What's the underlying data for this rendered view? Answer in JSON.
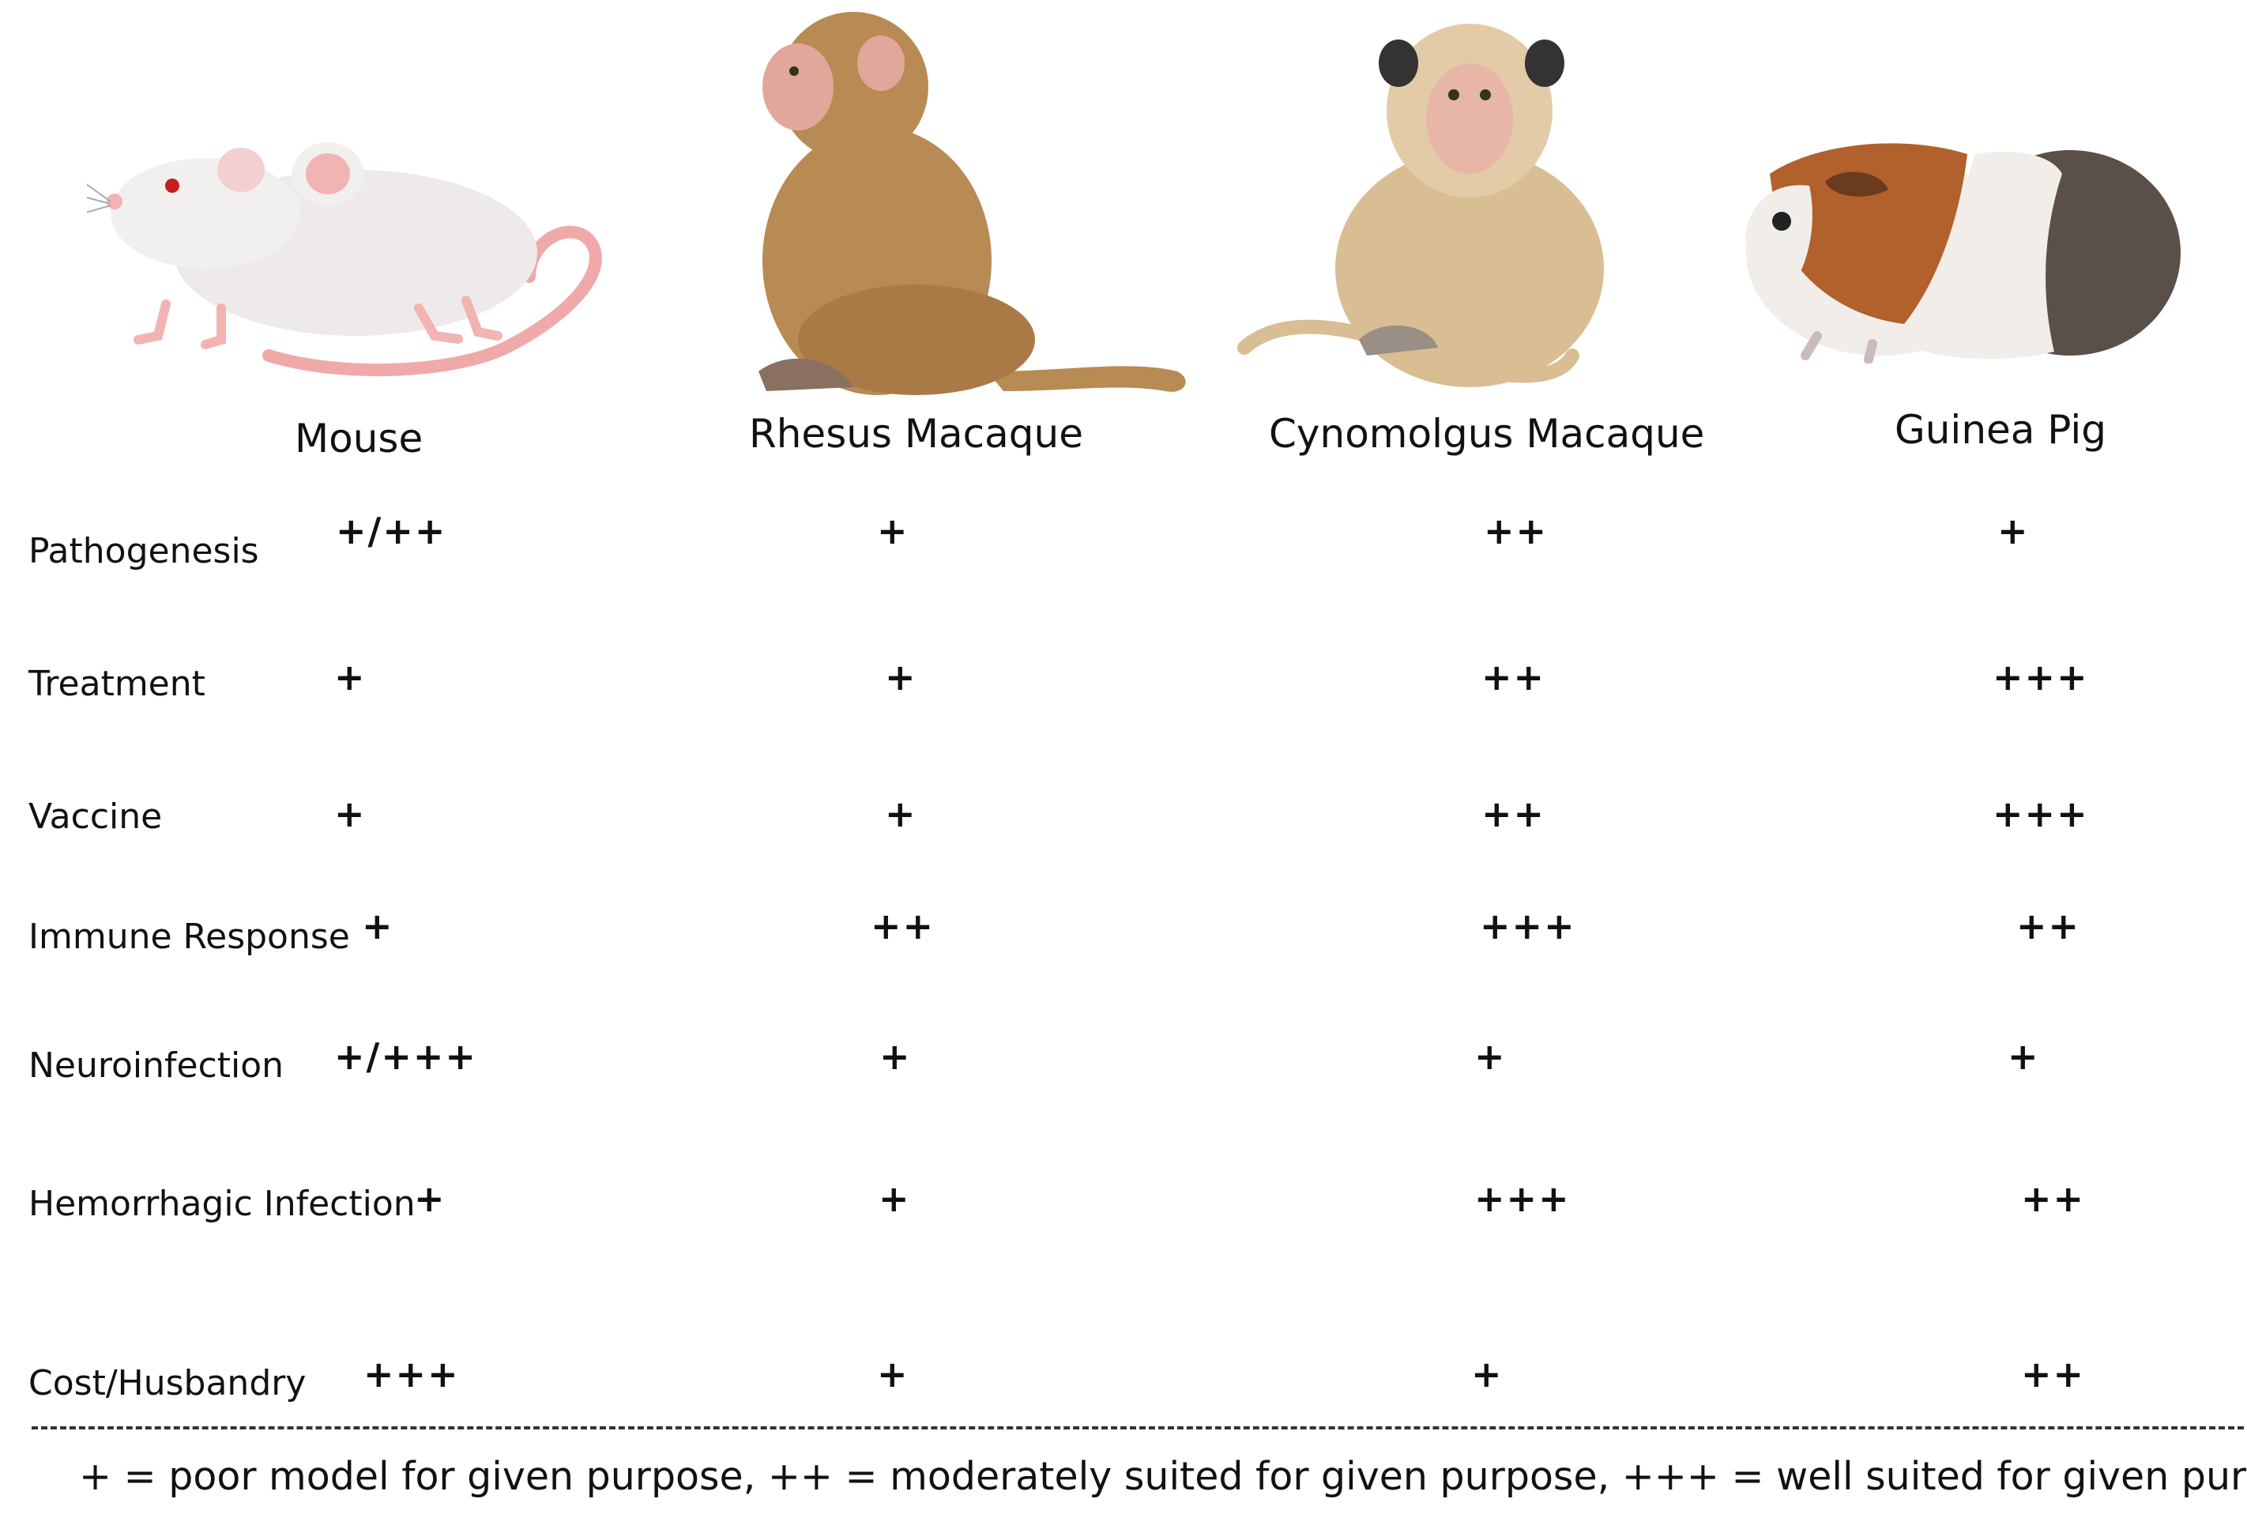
{
  "species": [
    {
      "name": "Mouse",
      "icon": "mouse-illustration"
    },
    {
      "name": "Rhesus Macaque",
      "icon": "rhesus-macaque-illustration"
    },
    {
      "name": "Cynomolgus Macaque",
      "icon": "cynomolgus-macaque-illustration"
    },
    {
      "name": "Guinea Pig",
      "icon": "guinea-pig-illustration"
    }
  ],
  "rows": [
    {
      "label": "Pathogenesis",
      "ratings": [
        "+/++",
        "+",
        "++",
        "+"
      ]
    },
    {
      "label": "Treatment",
      "ratings": [
        "+",
        "+",
        "++",
        "+++"
      ]
    },
    {
      "label": "Vaccine",
      "ratings": [
        "+",
        "+",
        "++",
        "+++"
      ]
    },
    {
      "label": "Immune Response",
      "ratings": [
        "+",
        "++",
        "+++",
        "++"
      ]
    },
    {
      "label": "Neuroinfection",
      "ratings": [
        "+/+++",
        "+",
        "+",
        "+"
      ]
    },
    {
      "label": "Hemorrhagic Infection",
      "ratings": [
        "+",
        "+",
        "+++",
        "++"
      ]
    },
    {
      "label": "Cost/Husbandry",
      "ratings": [
        "+++",
        "+",
        "+",
        "++"
      ]
    }
  ],
  "legend": "+ = poor model for given purpose, ++ = moderately suited for given purpose, +++ = well suited for given purpose",
  "colors": {
    "mouse_body": "#eeeaea",
    "mouse_pink": "#f2b3b3",
    "rhesus_fur": "#b88a54",
    "cyno_fur": "#d9bd93",
    "guinea_white": "#f1ede8",
    "guinea_orange": "#b2602c",
    "guinea_dark": "#5b4f49"
  }
}
